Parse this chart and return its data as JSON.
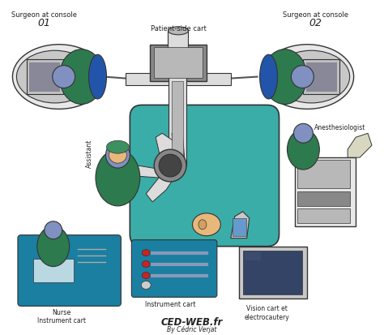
{
  "background_color": "#ffffff",
  "labels": {
    "surgeon1_line1": "Surgeon at console",
    "surgeon1_line2": "01",
    "surgeon2_line1": "Surgeon at console",
    "surgeon2_line2": "02",
    "patient_cart": "Patient-side cart",
    "assistant": "Assistant",
    "nurse": "Nurse",
    "instrument_cart1": "Instrument cart",
    "instrument_cart2": "Instrument cart",
    "anesthesiologist": "Anesthesiologist",
    "vision_cart": "Vision cart et\nelectrocautery",
    "footer1": "CED-WEB.fr",
    "footer2": "By Cédric Verjat"
  },
  "colors": {
    "teal_drape": "#3aada8",
    "teal_dark": "#2e8f8a",
    "green_scrubs": "#2d7a4e",
    "green_scrubs2": "#3d9060",
    "blue_scrubs": "#2255aa",
    "robot_light": "#dcdcdc",
    "robot_mid": "#b8b8b8",
    "robot_dark": "#888888",
    "robot_vdark": "#444444",
    "console_body": "#e8e8e8",
    "console_rim": "#c8c8c8",
    "console_screen_outer": "#c0c0c0",
    "console_screen_inner": "#888899",
    "teal_instrument": "#1a7fa0",
    "teal_instrument2": "#1565a0",
    "outline": "#333333",
    "text_dark": "#222222",
    "head_blue": "#8090c0",
    "head_blue2": "#6688bb",
    "skin": "#e8b87a",
    "skin2": "#d4a060",
    "monitor_gray": "#a0a0a0",
    "monitor_frame": "#c8c8c8",
    "white": "#ffffff",
    "red_button": "#cc2222",
    "slider_color": "#8899bb",
    "cable_color": "#555555",
    "vision_screen": "#334466",
    "anesthesia_equip": "#d8d8c0",
    "anesthesia_dark": "#888866"
  },
  "figsize": [
    4.74,
    4.13
  ],
  "dpi": 100
}
